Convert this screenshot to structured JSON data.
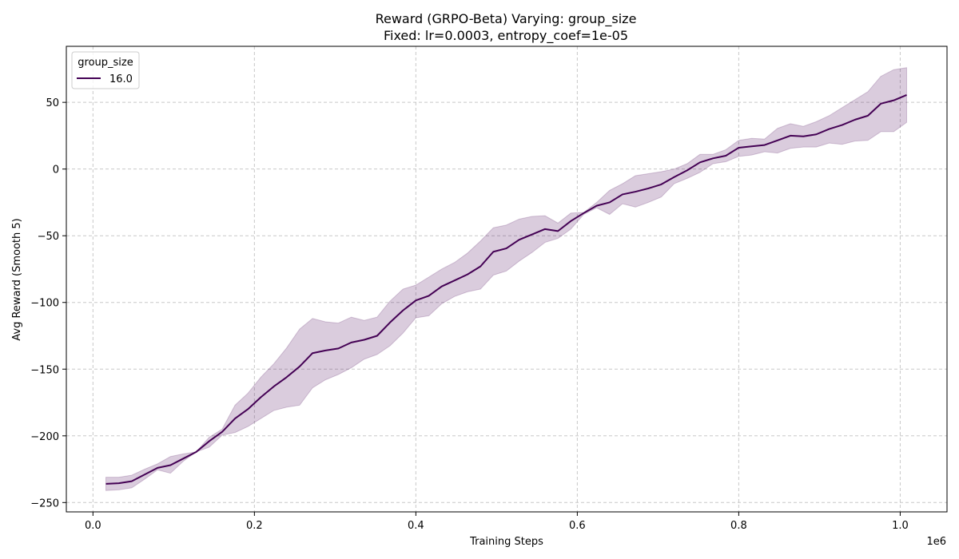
{
  "chart_data": {
    "type": "line",
    "title": "Reward (GRPO-Beta) Varying: group_size",
    "subtitle": "Fixed: lr=0.0003, entropy_coef=1e-05",
    "xlabel": "Training Steps",
    "ylabel": "Avg Reward (Smooth 5)",
    "x_offset_label": "1e6",
    "xlim": [
      -0.033,
      1.058
    ],
    "ylim": [
      -257,
      92
    ],
    "x_ticks": [
      0.0,
      0.2,
      0.4,
      0.6,
      0.8,
      1.0
    ],
    "x_tick_labels": [
      "0.0",
      "0.2",
      "0.4",
      "0.6",
      "0.8",
      "1.0"
    ],
    "y_ticks": [
      -250,
      -200,
      -150,
      -100,
      -50,
      0,
      50
    ],
    "y_tick_labels": [
      "−250",
      "−200",
      "−150",
      "−100",
      "−50",
      "0",
      "50"
    ],
    "grid": true,
    "legend": {
      "title": "group_size",
      "placement": "top-left"
    },
    "colors": {
      "line": "#440154",
      "band": "#440154"
    },
    "series": [
      {
        "name": "16.0",
        "x": [
          0.016,
          0.032,
          0.048,
          0.064,
          0.08,
          0.096,
          0.112,
          0.128,
          0.144,
          0.16,
          0.176,
          0.192,
          0.208,
          0.224,
          0.24,
          0.256,
          0.272,
          0.288,
          0.304,
          0.32,
          0.336,
          0.352,
          0.368,
          0.384,
          0.4,
          0.416,
          0.432,
          0.448,
          0.464,
          0.48,
          0.496,
          0.512,
          0.528,
          0.544,
          0.56,
          0.576,
          0.592,
          0.608,
          0.624,
          0.64,
          0.656,
          0.672,
          0.688,
          0.704,
          0.72,
          0.736,
          0.752,
          0.768,
          0.784,
          0.8,
          0.816,
          0.832,
          0.848,
          0.864,
          0.88,
          0.896,
          0.912,
          0.928,
          0.944,
          0.96,
          0.976,
          0.992,
          1.008
        ],
        "y": [
          -236,
          -235.5,
          -234,
          -229,
          -224,
          -222,
          -217,
          -212,
          -204,
          -197,
          -187,
          -180,
          -171,
          -163,
          -156,
          -148,
          -138,
          -136,
          -134.5,
          -130,
          -128,
          -125,
          -115,
          -106,
          -98.5,
          -95,
          -88,
          -83.5,
          -79,
          -73,
          -62,
          -59.5,
          -53,
          -49,
          -45,
          -46.5,
          -39,
          -33,
          -27.5,
          -25,
          -19,
          -17,
          -14.5,
          -11.5,
          -6,
          -1,
          5,
          8,
          10,
          16,
          17,
          18,
          21.5,
          25,
          24.5,
          26,
          30,
          33,
          37,
          40,
          49,
          51.5,
          55.5
        ],
        "upper": [
          -231,
          -231,
          -229.5,
          -225,
          -221,
          -215.5,
          -213.5,
          -212,
          -201,
          -195,
          -177,
          -168,
          -156,
          -146,
          -134,
          -120,
          -112,
          -114.5,
          -115.5,
          -111,
          -113.5,
          -111,
          -99,
          -90,
          -87,
          -81,
          -75,
          -70,
          -63,
          -54,
          -44,
          -42,
          -37.5,
          -35.5,
          -35,
          -40.5,
          -33,
          -32.5,
          -25,
          -16,
          -11,
          -5,
          -3.5,
          -2,
          0,
          4,
          11,
          11,
          14.5,
          21.5,
          23,
          22.5,
          30.5,
          34,
          32,
          35.5,
          40,
          46,
          52,
          58,
          69.5,
          74.5,
          76
        ],
        "lower": [
          -241,
          -240.5,
          -239,
          -232.5,
          -225.5,
          -228,
          -219,
          -212,
          -208.5,
          -199.5,
          -197.5,
          -193,
          -187,
          -181,
          -178.5,
          -177,
          -164,
          -158,
          -154,
          -149,
          -142.5,
          -139,
          -132.5,
          -123,
          -111.5,
          -110,
          -101,
          -95.5,
          -92,
          -90,
          -79.5,
          -76.5,
          -69,
          -62.5,
          -55,
          -52,
          -45,
          -34,
          -29,
          -34,
          -26,
          -28.5,
          -25,
          -21,
          -11,
          -7,
          -2.5,
          4,
          5.5,
          9.5,
          10.5,
          13,
          12,
          15.5,
          16.5,
          16.5,
          19.5,
          18.5,
          21,
          21.5,
          28,
          28,
          35
        ]
      }
    ]
  }
}
